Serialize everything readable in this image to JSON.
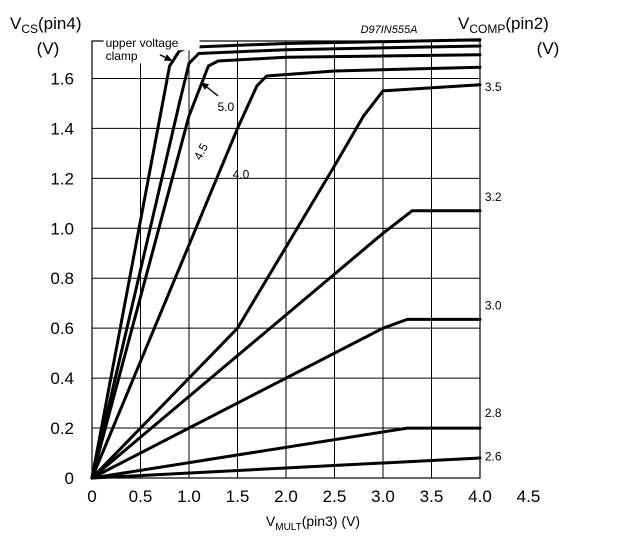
{
  "chart_data": {
    "type": "line",
    "title": "",
    "watermark": "D97IN555A",
    "ylabel": {
      "main": "V",
      "sub": "CS",
      "tail": "(pin4)",
      "unit": "(V)"
    },
    "series_label": {
      "main": "V",
      "sub": "COMP",
      "tail": "(pin2)",
      "unit": "(V)"
    },
    "xlabel": {
      "main": "V",
      "sub": "MULT",
      "tail": "(pin3) (V)"
    },
    "xlim": [
      0,
      4.5
    ],
    "ylim": [
      0,
      1.75
    ],
    "grid": true,
    "x_ticks": [
      "0",
      "0.5",
      "1.0",
      "1.5",
      "2.0",
      "2.5",
      "3.0",
      "3.5",
      "4.0",
      "4.5"
    ],
    "y_ticks": [
      "0",
      "0.2",
      "0.4",
      "0.6",
      "0.8",
      "1.0",
      "1.2",
      "1.4",
      "1.6"
    ],
    "series": [
      {
        "name": "2.6",
        "x": [
          0,
          4.0
        ],
        "y": [
          0,
          0.08
        ]
      },
      {
        "name": "2.8",
        "x": [
          0,
          3.25,
          4.0
        ],
        "y": [
          0,
          0.2,
          0.2
        ]
      },
      {
        "name": "3.0",
        "x": [
          0,
          3.0,
          3.25,
          4.0
        ],
        "y": [
          0,
          0.6,
          0.635,
          0.635
        ]
      },
      {
        "name": "3.2",
        "x": [
          0,
          3.0,
          3.3,
          4.0
        ],
        "y": [
          0,
          0.98,
          1.07,
          1.07
        ]
      },
      {
        "name": "3.5",
        "x": [
          0,
          1.5,
          2.5,
          2.8,
          3.0,
          4.0
        ],
        "y": [
          0,
          0.6,
          1.25,
          1.45,
          1.55,
          1.575
        ]
      },
      {
        "name": "4.0",
        "x": [
          0,
          1.5,
          1.7,
          1.8,
          2.5,
          4.0
        ],
        "y": [
          0,
          1.4,
          1.57,
          1.61,
          1.63,
          1.645
        ]
      },
      {
        "name": "4.5",
        "x": [
          0,
          1.0,
          1.2,
          1.3,
          2.0,
          4.0
        ],
        "y": [
          0,
          1.45,
          1.65,
          1.67,
          1.685,
          1.695
        ]
      },
      {
        "name": "5.0",
        "x": [
          0,
          0.9,
          1.0,
          1.1,
          2.0,
          4.0
        ],
        "y": [
          0,
          1.5,
          1.66,
          1.7,
          1.715,
          1.73
        ]
      },
      {
        "name": "upper voltage clamp",
        "x": [
          0,
          0.8,
          0.9,
          1.0,
          2.0,
          4.0
        ],
        "y": [
          0,
          1.65,
          1.71,
          1.725,
          1.74,
          1.755
        ]
      }
    ],
    "series_labels": [
      {
        "text": "2.6",
        "x": 4.05,
        "y": 0.07,
        "anchor": "start"
      },
      {
        "text": "2.8",
        "x": 4.05,
        "y": 0.245,
        "anchor": "start"
      },
      {
        "text": "3.0",
        "x": 4.05,
        "y": 0.675,
        "anchor": "start"
      },
      {
        "text": "3.2",
        "x": 4.05,
        "y": 1.11,
        "anchor": "start"
      },
      {
        "text": "3.5",
        "x": 4.05,
        "y": 1.55,
        "anchor": "start"
      },
      {
        "text": "4.0",
        "x": 1.45,
        "y": 1.2,
        "anchor": "start"
      },
      {
        "text": "4.5",
        "x": 1.12,
        "y": 1.27,
        "anchor": "start",
        "rotate": -62
      },
      {
        "text": "5.0",
        "x": 1.38,
        "y": 1.47,
        "anchor": "middle"
      }
    ],
    "annotations": [
      {
        "id": "clamp",
        "lines": [
          "upper voltage",
          "clamp"
        ],
        "x": 0.14,
        "y": 1.725,
        "arrow_to": [
          0.83,
          1.67
        ],
        "arrow_from": [
          0.7,
          1.695
        ]
      },
      {
        "id": "five",
        "arrow_to": [
          1.12,
          1.585
        ],
        "arrow_from": [
          1.3,
          1.53
        ]
      }
    ]
  }
}
